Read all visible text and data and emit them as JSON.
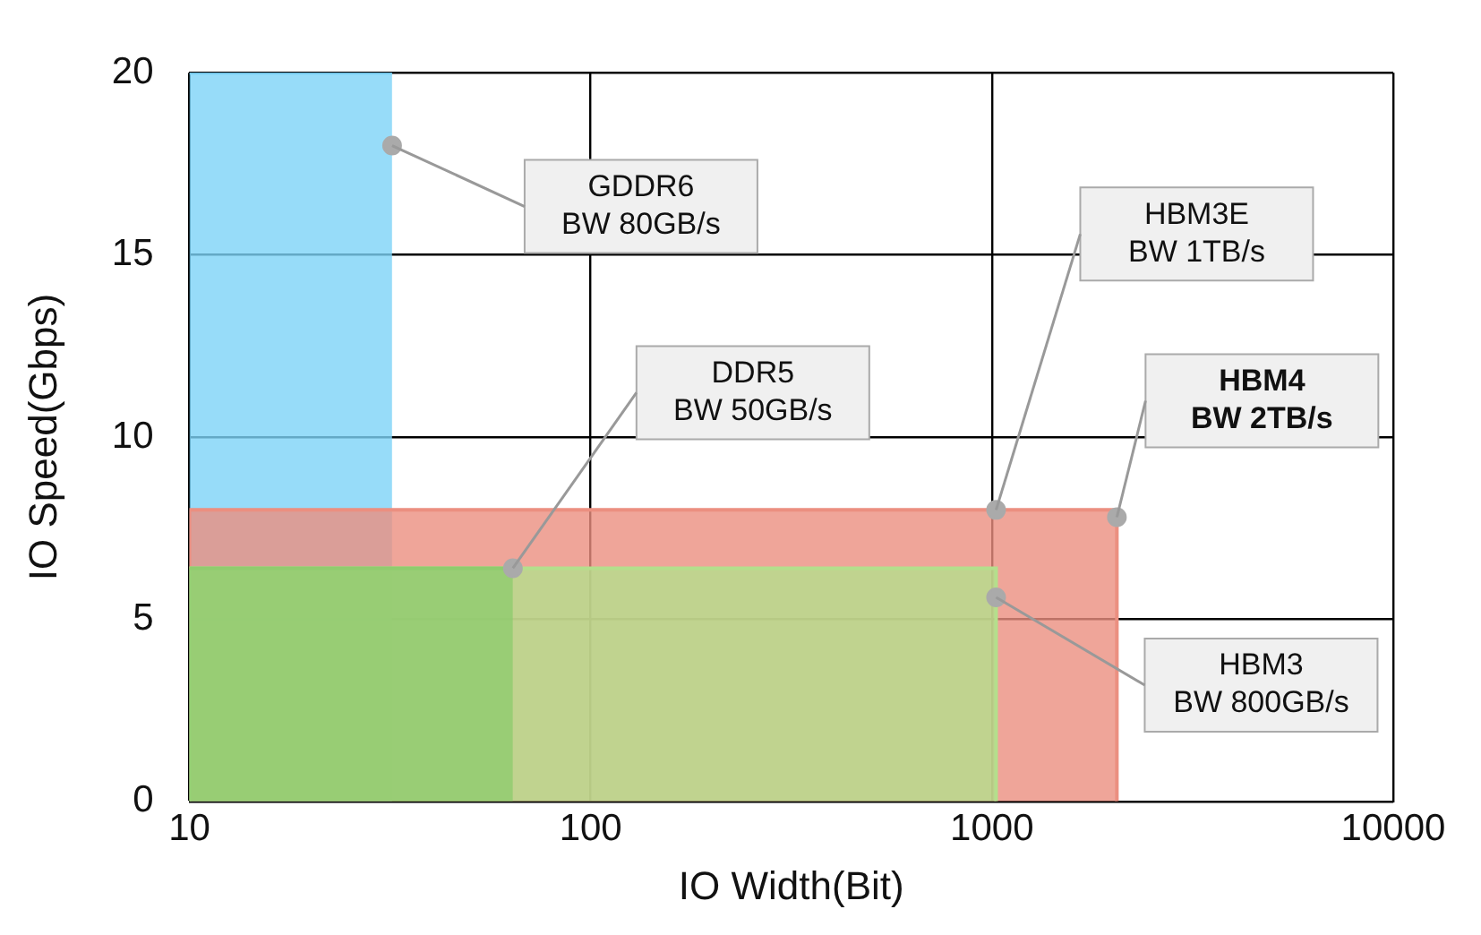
{
  "chart_data": {
    "type": "area",
    "xlabel": "IO Width(Bit)",
    "ylabel": "IO Speed(Gbps)",
    "log": "x",
    "grid": true,
    "legend": false,
    "xlim": [
      10,
      10000
    ],
    "xticks": [
      10,
      100,
      1000,
      10000
    ],
    "ylim": [
      0,
      20
    ],
    "yticks": [
      0,
      5,
      10,
      15,
      20
    ],
    "series": [
      {
        "type": "area",
        "color": "#7dd3f8",
        "x": [
          10,
          32
        ],
        "values": [
          20,
          20
        ]
      },
      {
        "type": "area",
        "color": "#eb8f80",
        "x": [
          10,
          10,
          2048,
          2048
        ],
        "values": [
          6.4,
          8,
          8,
          0
        ]
      },
      {
        "type": "area",
        "color": "#b4df8c",
        "x": [
          10,
          10,
          1024,
          1024
        ],
        "values": [
          0,
          6.4,
          6.4,
          0
        ]
      },
      {
        "type": "area",
        "color": "#8fcc6e",
        "x": [
          10,
          64
        ],
        "values": [
          6.4,
          6.4
        ]
      },
      {
        "type": "scatter",
        "color": "#aaaaaa",
        "marker": "circle",
        "x": [
          32,
          64,
          1024,
          2048,
          1024
        ],
        "values": [
          18,
          6.4,
          8,
          7.8,
          5.6
        ]
      }
    ],
    "annotations": [
      {
        "text": "GDDR6\nBW 80GB/s",
        "x": 32,
        "y": 18
      },
      {
        "text": "DDR5\nBW 50GB/s",
        "x": 64,
        "y": 6.4
      },
      "HBM3E\nBW 1TB/s",
      "HBM4\nBW 2TB/s",
      {
        "text": "HBM3\nBW 800GB/s",
        "x": 1024,
        "y": 5.6
      }
    ]
  }
}
